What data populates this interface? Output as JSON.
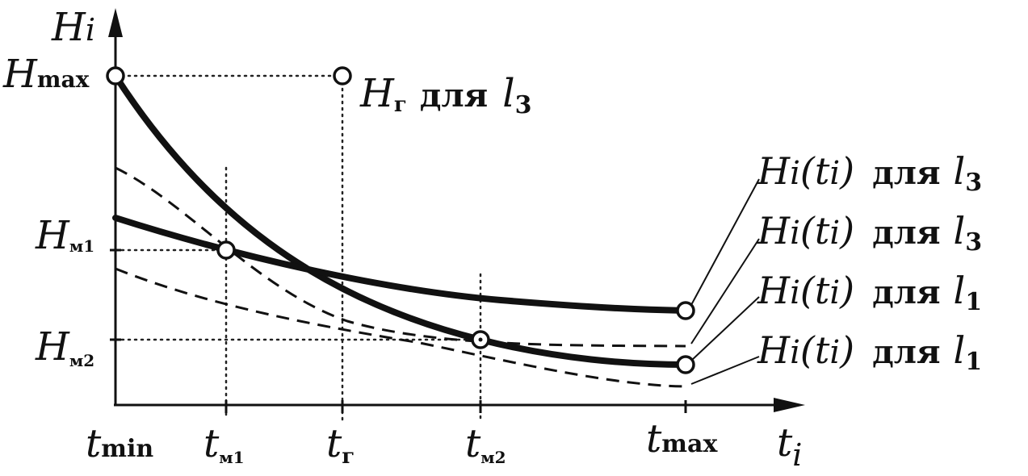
{
  "axes": {
    "y_label": "H",
    "y_label_sub": "i",
    "x_label": "t",
    "x_label_sub": "i"
  },
  "y_ticks": [
    {
      "main": "H",
      "sub": "max"
    },
    {
      "main": "H",
      "sub": "м1"
    },
    {
      "main": "H",
      "sub": "м2"
    }
  ],
  "x_ticks": [
    {
      "main": "t",
      "sub": "min"
    },
    {
      "main": "t",
      "sub": "м1"
    },
    {
      "main": "t",
      "sub": "г"
    },
    {
      "main": "t",
      "sub": "м2"
    },
    {
      "main": "t",
      "sub": "max"
    }
  ],
  "top_point_label": {
    "main": "H",
    "sub": "г",
    "text": "для",
    "l": "l",
    "l_sub": "3"
  },
  "legend": [
    {
      "func": "H",
      "func_sub": "i",
      "open": "(",
      "arg": "t",
      "arg_sub": "i",
      "close": ")",
      "text": "для",
      "l": "l",
      "l_sub": "3"
    },
    {
      "func": "H",
      "func_sub": "i",
      "open": "(",
      "arg": "t",
      "arg_sub": "i",
      "close": ")",
      "text": "для",
      "l": "l",
      "l_sub": "3"
    },
    {
      "func": "H",
      "func_sub": "i",
      "open": "(",
      "arg": "t",
      "arg_sub": "i",
      "close": ")",
      "text": "для",
      "l": "l",
      "l_sub": "1"
    },
    {
      "func": "H",
      "func_sub": "i",
      "open": "(",
      "arg": "t",
      "arg_sub": "i",
      "close": ")",
      "text": "для",
      "l": "l",
      "l_sub": "1"
    }
  ],
  "colors": {
    "ink": "#111111",
    "background": "#ffffff"
  }
}
